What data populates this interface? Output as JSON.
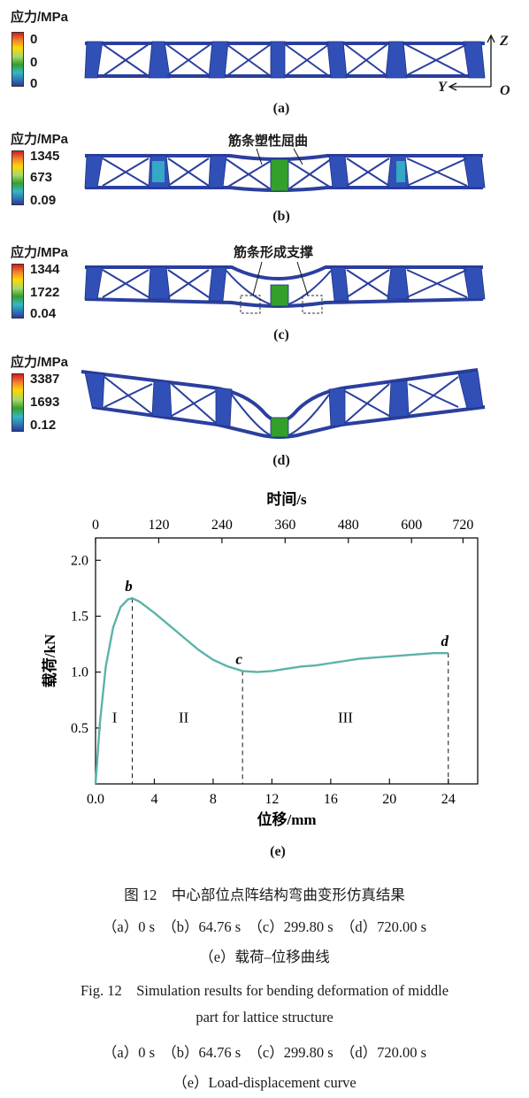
{
  "panels": [
    {
      "legend_title": "应力/MPa",
      "legend_values": [
        "0",
        "0",
        "0"
      ],
      "label": "(a)",
      "annotation": ""
    },
    {
      "legend_title": "应力/MPa",
      "legend_values": [
        "1345",
        "673",
        "0.09"
      ],
      "label": "(b)",
      "annotation": "筋条塑性屈曲"
    },
    {
      "legend_title": "应力/MPa",
      "legend_values": [
        "1344",
        "1722",
        "0.04"
      ],
      "label": "(c)",
      "annotation": "筋条形成支撑"
    },
    {
      "legend_title": "应力/MPa",
      "legend_values": [
        "3387",
        "1693",
        "0.12"
      ],
      "label": "(d)",
      "annotation": ""
    }
  ],
  "axes_triad": {
    "z": "Z",
    "y": "Y",
    "o": "O"
  },
  "chart_data": {
    "type": "line",
    "xlabel": "位移/mm",
    "ylabel": "载荷/kN",
    "top_xlabel": "时间/s",
    "xlim": [
      0,
      26
    ],
    "ylim": [
      0,
      2.2
    ],
    "xticks": [
      0,
      4,
      8,
      12,
      16,
      20,
      24
    ],
    "xtick_labels": [
      "0.0",
      "4",
      "8",
      "12",
      "16",
      "20",
      "24"
    ],
    "yticks": [
      0.5,
      1.0,
      1.5,
      2.0
    ],
    "ytick_labels": [
      "0.5",
      "1.0",
      "1.5",
      "2.0"
    ],
    "top_ticks": [
      0,
      120,
      240,
      360,
      480,
      600,
      720
    ],
    "top_tick_labels": [
      "0",
      "120",
      "240",
      "360",
      "480",
      "600",
      "720"
    ],
    "top_tick_x": [
      0,
      4.3,
      8.6,
      12.9,
      17.2,
      21.5,
      25.0
    ],
    "series": [
      {
        "values": [
          [
            0.0,
            0.0
          ],
          [
            0.3,
            0.55
          ],
          [
            0.7,
            1.05
          ],
          [
            1.2,
            1.4
          ],
          [
            1.7,
            1.58
          ],
          [
            2.2,
            1.65
          ],
          [
            2.5,
            1.66
          ],
          [
            3.0,
            1.63
          ],
          [
            4.0,
            1.53
          ],
          [
            5.0,
            1.42
          ],
          [
            6.0,
            1.31
          ],
          [
            7.0,
            1.2
          ],
          [
            8.0,
            1.11
          ],
          [
            9.0,
            1.05
          ],
          [
            10.0,
            1.01
          ],
          [
            11.0,
            1.0
          ],
          [
            12.0,
            1.01
          ],
          [
            13.0,
            1.03
          ],
          [
            14.0,
            1.05
          ],
          [
            15.0,
            1.06
          ],
          [
            16.0,
            1.08
          ],
          [
            17.0,
            1.1
          ],
          [
            18.0,
            1.12
          ],
          [
            19.0,
            1.13
          ],
          [
            20.0,
            1.14
          ],
          [
            21.0,
            1.15
          ],
          [
            22.0,
            1.16
          ],
          [
            23.0,
            1.17
          ],
          [
            24.0,
            1.17
          ]
        ]
      }
    ],
    "annotations": [
      {
        "label": "b",
        "x": 2.5,
        "y": 1.66
      },
      {
        "label": "c",
        "x": 10.0,
        "y": 1.01
      },
      {
        "label": "d",
        "x": 24.0,
        "y": 1.17
      }
    ],
    "regions": [
      {
        "label": "I",
        "x": 1.3,
        "y": 0.55
      },
      {
        "label": "II",
        "x": 6.0,
        "y": 0.55
      },
      {
        "label": "III",
        "x": 17.0,
        "y": 0.55
      }
    ],
    "dividers": [
      2.5,
      10.0,
      24.0
    ],
    "line_color": "#5cb3a8"
  },
  "chart_label": "(e)",
  "caption": {
    "zh_title": "图 12　中心部位点阵结构弯曲变形仿真结果",
    "zh_sub": "（a）0 s　（b）64.76 s　（c）299.80 s　（d）720.00 s",
    "zh_sub2": "（e）载荷–位移曲线",
    "en_title_1": "Fig. 12　Simulation results for bending deformation of middle",
    "en_title_2": "part for lattice structure",
    "en_sub": "（a）0 s　（b）64.76 s　（c）299.80 s　（d）720.00 s",
    "en_sub2": "（e）Load-displacement curve"
  }
}
